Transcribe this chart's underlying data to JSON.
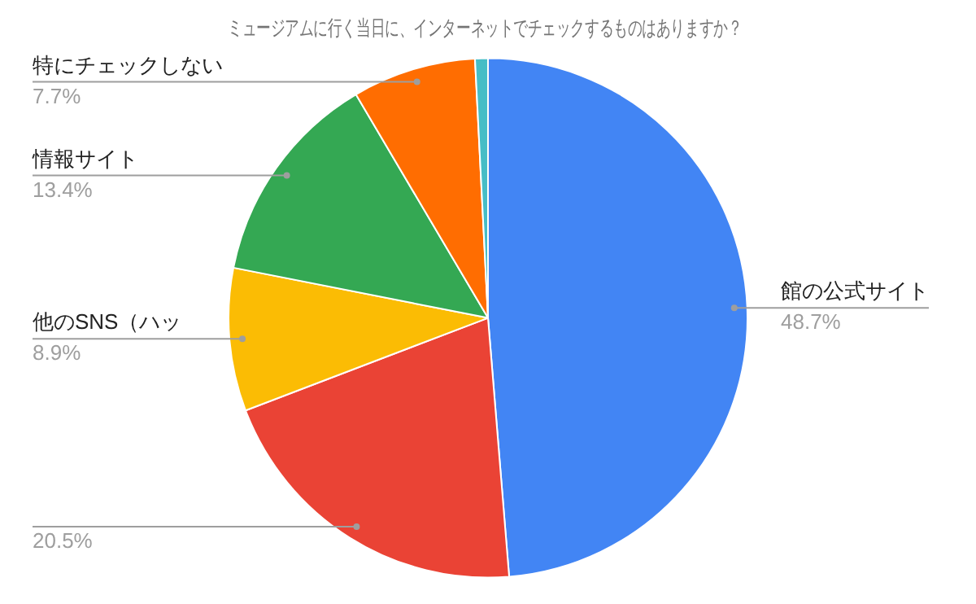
{
  "chart_data": {
    "type": "pie",
    "title": "ミュージアムに行く当日に、インターネットでチェックするものはありますか？",
    "categories": [
      "館の公式サイト",
      null,
      "他のSNS（ハッ",
      "情報サイト",
      "特にチェックしない",
      null
    ],
    "values": [
      48.7,
      20.5,
      8.9,
      13.4,
      7.7,
      0.8
    ],
    "colors": [
      "#4285f4",
      "#ea4335",
      "#fbbc04",
      "#34a853",
      "#ff6d01",
      "#46bdc6"
    ],
    "value_labels": [
      "48.7%",
      "20.5%",
      "8.9%",
      "13.4%",
      "7.7%",
      null
    ],
    "legend": false
  }
}
